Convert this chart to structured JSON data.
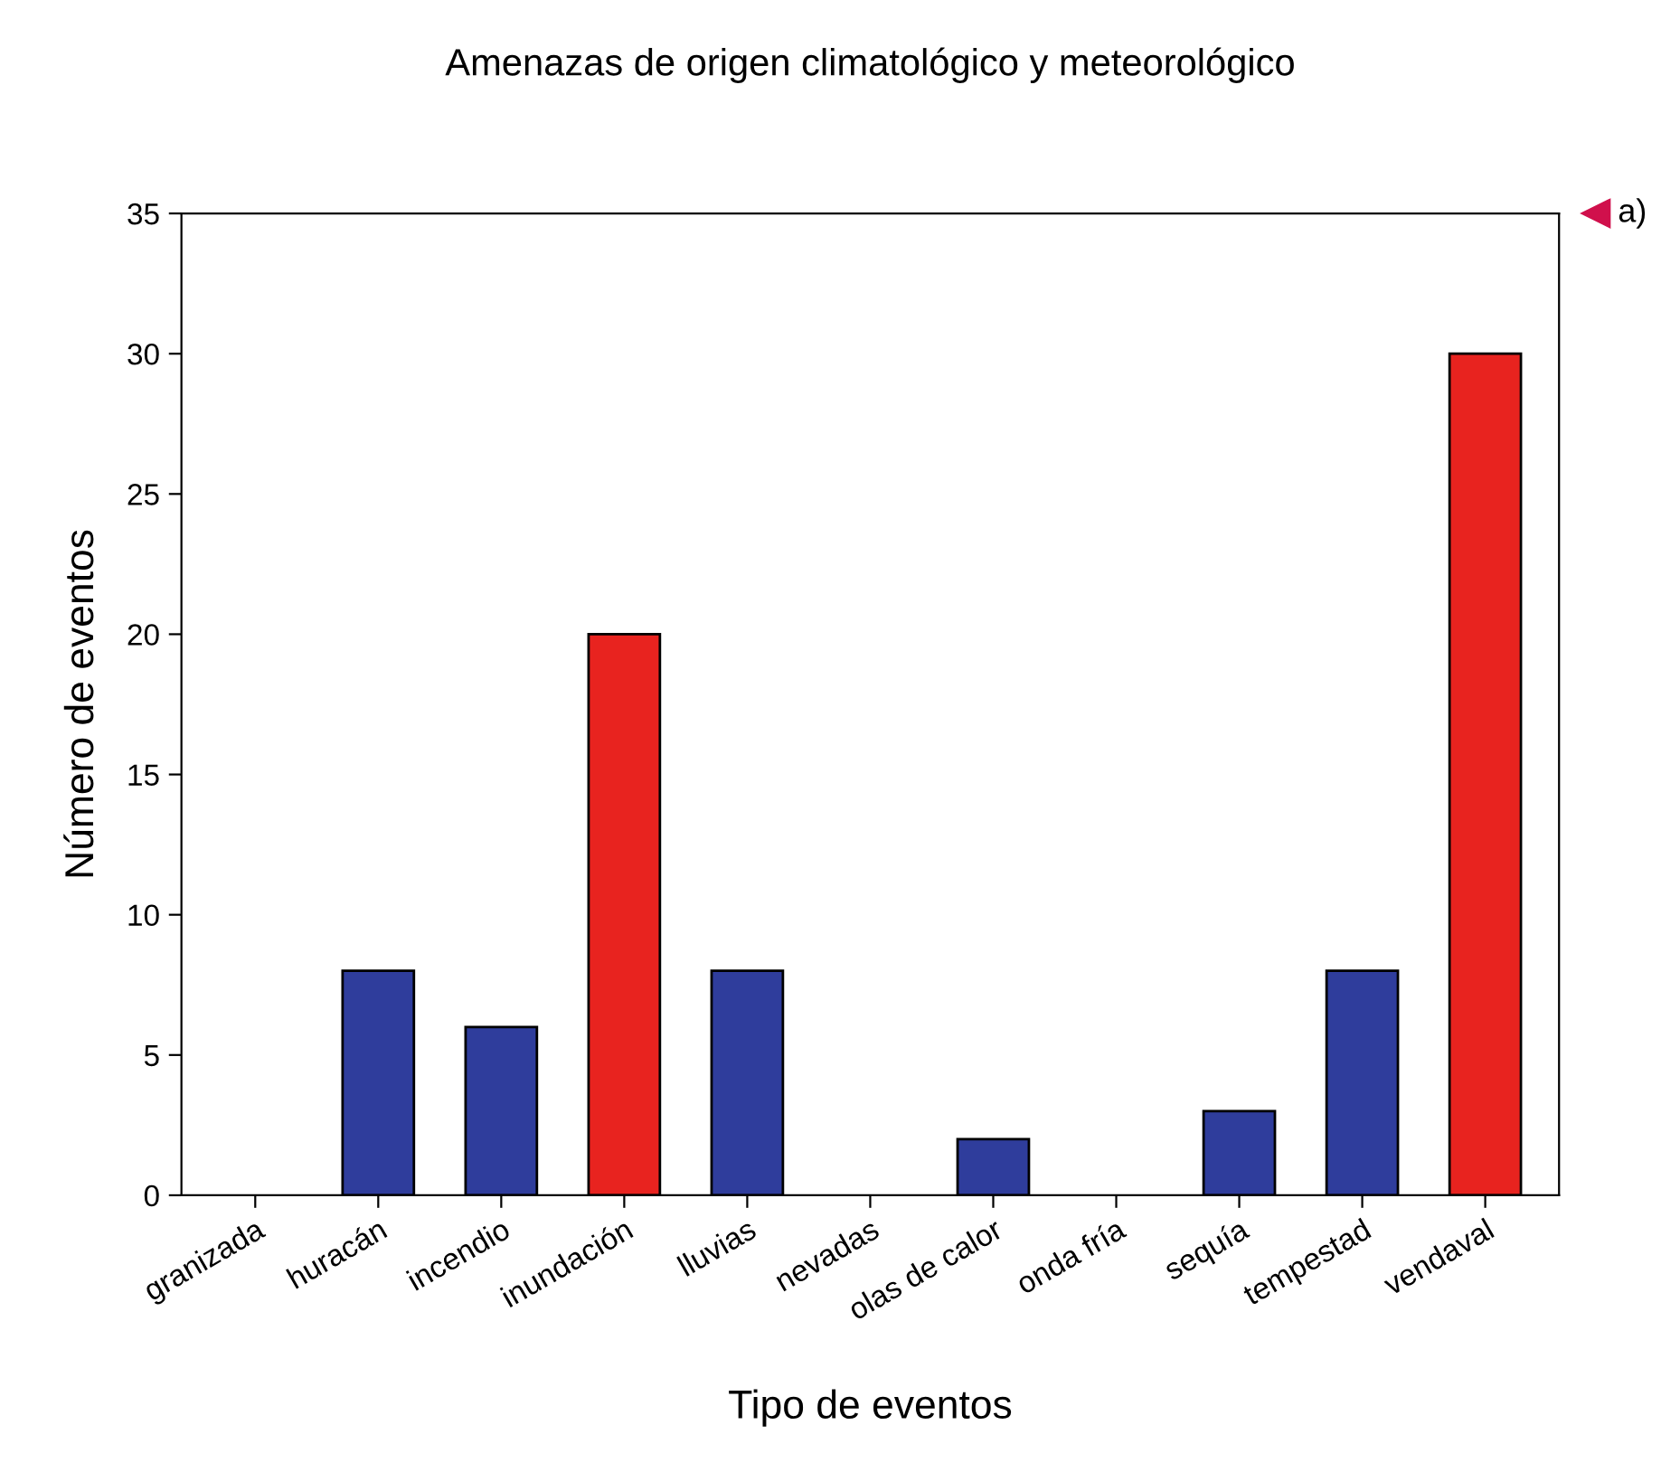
{
  "chart_data": {
    "type": "bar",
    "title": "Amenazas de origen climatológico y meteorológico",
    "xlabel": "Tipo de eventos",
    "ylabel": "Número de eventos",
    "categories": [
      "granizada",
      "huracán",
      "incendio",
      "inundación",
      "lluvias",
      "nevadas",
      "olas de calor",
      "onda fría",
      "sequía",
      "tempestad",
      "vendaval"
    ],
    "values": [
      0,
      8,
      6,
      20,
      8,
      0,
      2,
      0,
      3,
      8,
      30
    ],
    "colors": [
      "#2f3d9c",
      "#2f3d9c",
      "#2f3d9c",
      "#e8231f",
      "#2f3d9c",
      "#2f3d9c",
      "#2f3d9c",
      "#2f3d9c",
      "#2f3d9c",
      "#2f3d9c",
      "#e8231f"
    ],
    "ylim": [
      0,
      35
    ],
    "yticks": [
      0,
      5,
      10,
      15,
      20,
      25,
      30,
      35
    ],
    "grid": false,
    "legend": false,
    "annotations": [
      "a)"
    ]
  }
}
